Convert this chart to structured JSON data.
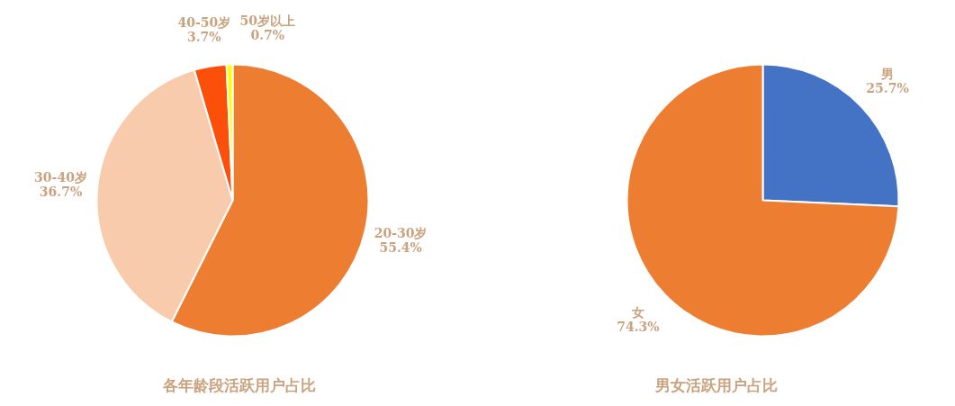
{
  "chart_data": [
    {
      "type": "pie",
      "title": "各年龄段活跃用户占比",
      "categories": [
        "20-30岁",
        "30-40岁",
        "40-50岁",
        "50岁以上"
      ],
      "values": [
        55.4,
        36.7,
        3.7,
        0.7
      ],
      "colors": [
        "#ed7d31",
        "#f8cbad",
        "#fc500a",
        "#ffff00"
      ],
      "value_labels": [
        "55.4%",
        "36.7%",
        "3.7%",
        "0.7%"
      ]
    },
    {
      "type": "pie",
      "title": "男女活跃用户占比",
      "categories": [
        "男",
        "女"
      ],
      "values": [
        25.7,
        74.3
      ],
      "colors": [
        "#4472c4",
        "#ed7d31"
      ],
      "value_labels": [
        "25.7%",
        "74.3%"
      ]
    }
  ]
}
